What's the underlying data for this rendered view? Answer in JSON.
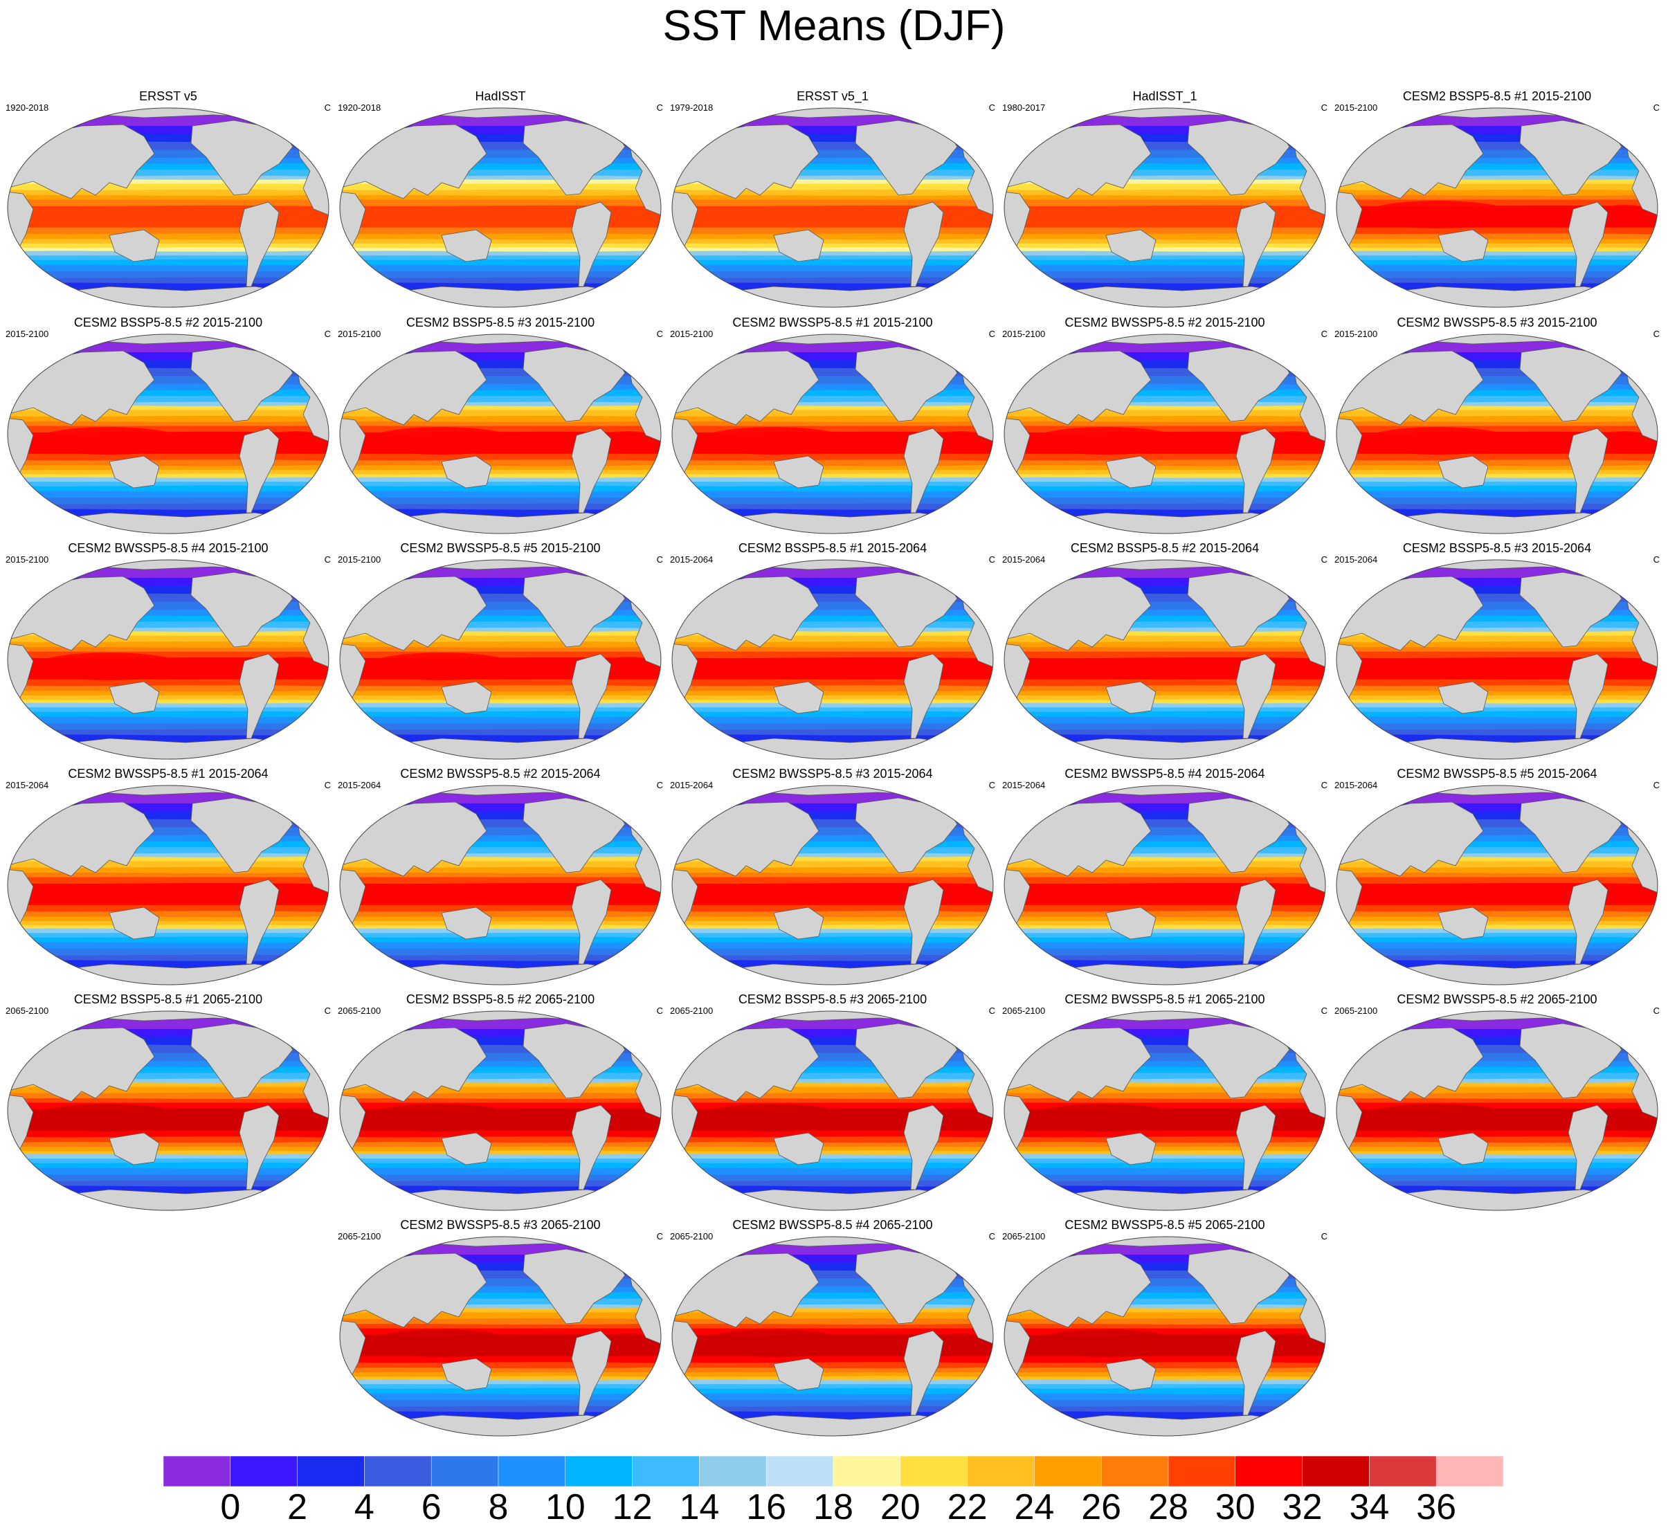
{
  "title": "SST Means (DJF)",
  "units": "C",
  "panels": [
    {
      "title": "ERSST v5",
      "period": "1920-2018",
      "warmth": 0
    },
    {
      "title": "HadISST",
      "period": "1920-2018",
      "warmth": 0
    },
    {
      "title": "ERSST v5_1",
      "period": "1979-2018",
      "warmth": 0
    },
    {
      "title": "HadISST_1",
      "period": "1980-2017",
      "warmth": 0
    },
    {
      "title": "CESM2 BSSP5-8.5 #1 2015-2100",
      "period": "2015-2100",
      "warmth": 1
    },
    {
      "title": "CESM2 BSSP5-8.5 #2 2015-2100",
      "period": "2015-2100",
      "warmth": 1
    },
    {
      "title": "CESM2 BSSP5-8.5 #3 2015-2100",
      "period": "2015-2100",
      "warmth": 1
    },
    {
      "title": "CESM2 BWSSP5-8.5 #1 2015-2100",
      "period": "2015-2100",
      "warmth": 1
    },
    {
      "title": "CESM2 BWSSP5-8.5 #2 2015-2100",
      "period": "2015-2100",
      "warmth": 1
    },
    {
      "title": "CESM2 BWSSP5-8.5 #3 2015-2100",
      "period": "2015-2100",
      "warmth": 1
    },
    {
      "title": "CESM2 BWSSP5-8.5 #4 2015-2100",
      "period": "2015-2100",
      "warmth": 1
    },
    {
      "title": "CESM2 BWSSP5-8.5 #5 2015-2100",
      "period": "2015-2100",
      "warmth": 1
    },
    {
      "title": "CESM2 BSSP5-8.5 #1 2015-2064",
      "period": "2015-2064",
      "warmth": 0.5
    },
    {
      "title": "CESM2 BSSP5-8.5 #2 2015-2064",
      "period": "2015-2064",
      "warmth": 0.5
    },
    {
      "title": "CESM2 BSSP5-8.5 #3 2015-2064",
      "period": "2015-2064",
      "warmth": 0.5
    },
    {
      "title": "CESM2 BWSSP5-8.5 #1 2015-2064",
      "period": "2015-2064",
      "warmth": 0.5
    },
    {
      "title": "CESM2 BWSSP5-8.5 #2 2015-2064",
      "period": "2015-2064",
      "warmth": 0.5
    },
    {
      "title": "CESM2 BWSSP5-8.5 #3 2015-2064",
      "period": "2015-2064",
      "warmth": 0.5
    },
    {
      "title": "CESM2 BWSSP5-8.5 #4 2015-2064",
      "period": "2015-2064",
      "warmth": 0.5
    },
    {
      "title": "CESM2 BWSSP5-8.5 #5 2015-2064",
      "period": "2015-2064",
      "warmth": 0.5
    },
    {
      "title": "CESM2 BSSP5-8.5 #1 2065-2100",
      "period": "2065-2100",
      "warmth": 2
    },
    {
      "title": "CESM2 BSSP5-8.5 #2 2065-2100",
      "period": "2065-2100",
      "warmth": 2
    },
    {
      "title": "CESM2 BSSP5-8.5 #3 2065-2100",
      "period": "2065-2100",
      "warmth": 2
    },
    {
      "title": "CESM2 BWSSP5-8.5 #1 2065-2100",
      "period": "2065-2100",
      "warmth": 2
    },
    {
      "title": "CESM2 BWSSP5-8.5 #2 2065-2100",
      "period": "2065-2100",
      "warmth": 2
    },
    {
      "title": "CESM2 BWSSP5-8.5 #3 2065-2100",
      "period": "2065-2100",
      "warmth": 2
    },
    {
      "title": "CESM2 BWSSP5-8.5 #4 2065-2100",
      "period": "2065-2100",
      "warmth": 2
    },
    {
      "title": "CESM2 BWSSP5-8.5 #5 2065-2100",
      "period": "2065-2100",
      "warmth": 2
    }
  ],
  "colorbar": {
    "colors": [
      "#8a2be2",
      "#3b16ff",
      "#1a2cf0",
      "#3a5ce0",
      "#2f78ec",
      "#1e90ff",
      "#00b4ff",
      "#3cbcff",
      "#90cdec",
      "#bde0f5",
      "#fff59a",
      "#ffe040",
      "#ffc020",
      "#ffa000",
      "#ff7c0a",
      "#ff4000",
      "#ff0000",
      "#d00000",
      "#dc3a3a",
      "#ffb6b6"
    ],
    "labels": [
      "0",
      "2",
      "4",
      "6",
      "8",
      "10",
      "12",
      "14",
      "16",
      "18",
      "20",
      "22",
      "24",
      "26",
      "28",
      "30",
      "32",
      "34",
      "36"
    ]
  }
}
